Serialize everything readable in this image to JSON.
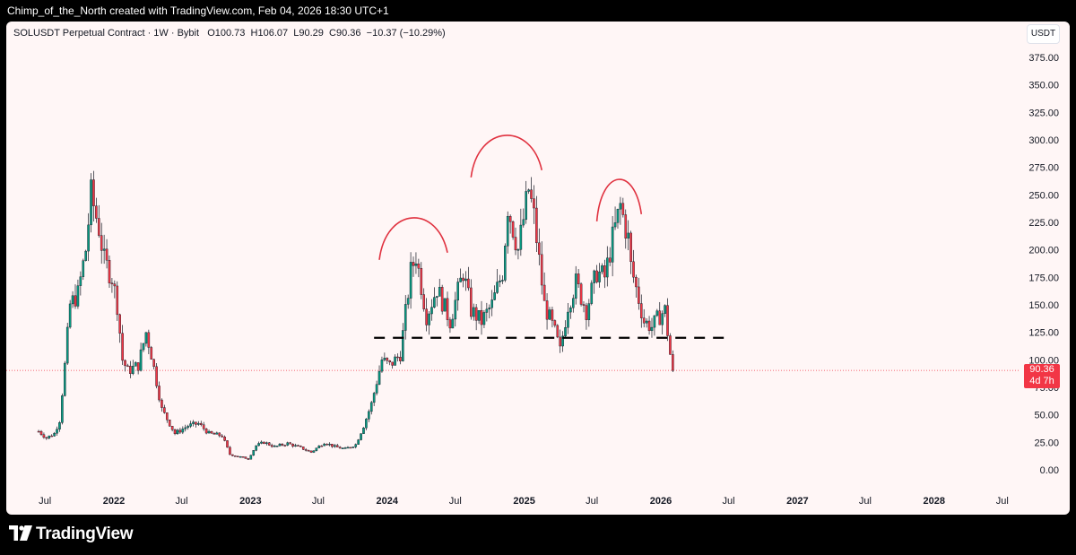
{
  "banner": {
    "text": "Chimp_of_the_North created with TradingView.com, Feb 04, 2026 18:30 UTC+1"
  },
  "symbol": {
    "name": "SOLUSDT Perpetual Contract · 1W · Bybit",
    "open": "O100.73",
    "high": "H106.07",
    "low": "L90.29",
    "close": "C90.36",
    "change": "−10.37 (−10.29%)"
  },
  "currency": "USDT",
  "price_tag": {
    "price": "90.36",
    "countdown": "4d 7h"
  },
  "footer": {
    "brand": "TradingView"
  },
  "colors": {
    "up": "#089981",
    "down": "#f23645",
    "annotation": "#e0313f",
    "background": "#fff6f6"
  },
  "chart_data": {
    "type": "candlestick",
    "title": "SOLUSDT Perpetual Contract · 1W · Bybit",
    "y_axis_ticks": [
      "375.00",
      "350.00",
      "325.00",
      "300.00",
      "275.00",
      "250.00",
      "225.00",
      "200.00",
      "175.00",
      "150.00",
      "125.00",
      "100.00",
      "75.00",
      "50.00",
      "25.00",
      "0.00"
    ],
    "x_axis_ticks": [
      {
        "label": "Jul",
        "date": "2021-07"
      },
      {
        "label": "2022",
        "date": "2022-01"
      },
      {
        "label": "Jul",
        "date": "2022-07"
      },
      {
        "label": "2023",
        "date": "2023-01"
      },
      {
        "label": "Jul",
        "date": "2023-07"
      },
      {
        "label": "2024",
        "date": "2024-01"
      },
      {
        "label": "Jul",
        "date": "2024-07"
      },
      {
        "label": "2025",
        "date": "2025-01"
      },
      {
        "label": "Jul",
        "date": "2025-07"
      },
      {
        "label": "2026",
        "date": "2026-01"
      },
      {
        "label": "Jul",
        "date": "2026-07"
      },
      {
        "label": "2027",
        "date": "2027-01"
      },
      {
        "label": "Jul",
        "date": "2027-07"
      },
      {
        "label": "2028",
        "date": "2028-01"
      },
      {
        "label": "Jul",
        "date": "2028-07"
      }
    ],
    "ylim": [
      0,
      400
    ],
    "last_price": 90.36,
    "neckline_level": 120,
    "close_path": [
      [
        "2021-06-14",
        35
      ],
      [
        "2021-07-05",
        29
      ],
      [
        "2021-07-26",
        33
      ],
      [
        "2021-08-09",
        45
      ],
      [
        "2021-08-23",
        95
      ],
      [
        "2021-09-06",
        150
      ],
      [
        "2021-09-27",
        160
      ],
      [
        "2021-10-18",
        200
      ],
      [
        "2021-11-01",
        250
      ],
      [
        "2021-11-08",
        240
      ],
      [
        "2021-11-22",
        220
      ],
      [
        "2021-12-06",
        190
      ],
      [
        "2021-12-27",
        175
      ],
      [
        "2022-01-10",
        150
      ],
      [
        "2022-01-24",
        100
      ],
      [
        "2022-02-07",
        90
      ],
      [
        "2022-03-07",
        95
      ],
      [
        "2022-03-28",
        125
      ],
      [
        "2022-04-11",
        105
      ],
      [
        "2022-05-09",
        55
      ],
      [
        "2022-06-13",
        33
      ],
      [
        "2022-07-18",
        40
      ],
      [
        "2022-08-15",
        42
      ],
      [
        "2022-09-12",
        33
      ],
      [
        "2022-10-17",
        31
      ],
      [
        "2022-11-07",
        14
      ],
      [
        "2022-12-26",
        10
      ],
      [
        "2023-01-16",
        22
      ],
      [
        "2023-02-06",
        25
      ],
      [
        "2023-03-06",
        21
      ],
      [
        "2023-04-10",
        24
      ],
      [
        "2023-05-15",
        20
      ],
      [
        "2023-06-12",
        16
      ],
      [
        "2023-07-17",
        25
      ],
      [
        "2023-08-14",
        21
      ],
      [
        "2023-09-11",
        19
      ],
      [
        "2023-10-09",
        23
      ],
      [
        "2023-10-30",
        40
      ],
      [
        "2023-11-20",
        60
      ],
      [
        "2023-12-18",
        100
      ],
      [
        "2024-01-08",
        95
      ],
      [
        "2024-02-05",
        105
      ],
      [
        "2024-03-04",
        180
      ],
      [
        "2024-03-18",
        195
      ],
      [
        "2024-04-15",
        140
      ],
      [
        "2024-05-13",
        165
      ],
      [
        "2024-06-17",
        135
      ],
      [
        "2024-07-22",
        180
      ],
      [
        "2024-08-12",
        145
      ],
      [
        "2024-09-09",
        135
      ],
      [
        "2024-10-07",
        150
      ],
      [
        "2024-11-04",
        180
      ],
      [
        "2024-11-18",
        240
      ],
      [
        "2024-12-16",
        200
      ],
      [
        "2025-01-13",
        255
      ],
      [
        "2025-01-27",
        230
      ],
      [
        "2025-02-24",
        150
      ],
      [
        "2025-03-24",
        125
      ],
      [
        "2025-04-07",
        108
      ],
      [
        "2025-04-28",
        150
      ],
      [
        "2025-05-19",
        170
      ],
      [
        "2025-06-16",
        145
      ],
      [
        "2025-07-14",
        180
      ],
      [
        "2025-08-04",
        175
      ],
      [
        "2025-08-25",
        210
      ],
      [
        "2025-09-15",
        240
      ],
      [
        "2025-10-06",
        210
      ],
      [
        "2025-10-13",
        185
      ],
      [
        "2025-11-03",
        155
      ],
      [
        "2025-11-17",
        135
      ],
      [
        "2025-12-08",
        130
      ],
      [
        "2025-12-29",
        140
      ],
      [
        "2026-01-12",
        145
      ],
      [
        "2026-01-26",
        105
      ],
      [
        "2026-02-02",
        90
      ]
    ],
    "annotations": [
      {
        "type": "arc",
        "label": "left shoulder",
        "from": "2023-12-11",
        "to": "2024-06-10",
        "peak": 230
      },
      {
        "type": "arc",
        "label": "head",
        "from": "2024-08-12",
        "to": "2025-02-17",
        "peak": 305
      },
      {
        "type": "arc",
        "label": "right shoulder",
        "from": "2025-07-14",
        "to": "2025-11-10",
        "peak": 265
      },
      {
        "type": "dashed-line",
        "label": "neckline",
        "from": "2023-11-27",
        "to": "2026-07-06",
        "value": 120
      }
    ]
  }
}
